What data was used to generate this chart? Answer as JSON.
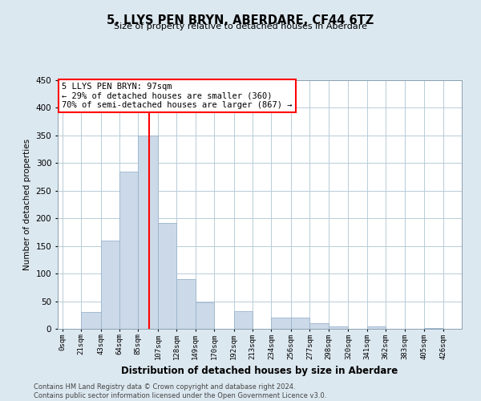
{
  "title": "5, LLYS PEN BRYN, ABERDARE, CF44 6TZ",
  "subtitle": "Size of property relative to detached houses in Aberdare",
  "xlabel": "Distribution of detached houses by size in Aberdare",
  "ylabel": "Number of detached properties",
  "bar_color": "#ccd9e8",
  "bar_edge_color": "#9ab4cc",
  "bar_lefts": [
    0,
    21,
    43,
    64,
    85,
    107,
    128,
    149,
    170,
    192,
    213,
    234,
    256,
    277,
    298,
    320,
    341,
    362,
    383,
    405
  ],
  "bar_widths": [
    21,
    22,
    21,
    21,
    22,
    21,
    21,
    21,
    22,
    21,
    21,
    22,
    21,
    21,
    22,
    21,
    21,
    21,
    22,
    21
  ],
  "bar_heights": [
    0,
    30,
    160,
    285,
    350,
    192,
    90,
    48,
    0,
    32,
    0,
    20,
    20,
    10,
    5,
    0,
    5,
    0,
    0,
    2
  ],
  "x_tick_positions": [
    0,
    21,
    43,
    64,
    85,
    107,
    128,
    149,
    170,
    192,
    213,
    234,
    256,
    277,
    298,
    320,
    341,
    362,
    383,
    405,
    426
  ],
  "x_tick_labels": [
    "0sqm",
    "21sqm",
    "43sqm",
    "64sqm",
    "85sqm",
    "107sqm",
    "128sqm",
    "149sqm",
    "170sqm",
    "192sqm",
    "213sqm",
    "234sqm",
    "256sqm",
    "277sqm",
    "298sqm",
    "320sqm",
    "341sqm",
    "362sqm",
    "383sqm",
    "405sqm",
    "426sqm"
  ],
  "ylim": [
    0,
    450
  ],
  "xlim": [
    -5,
    447
  ],
  "yticks": [
    0,
    50,
    100,
    150,
    200,
    250,
    300,
    350,
    400,
    450
  ],
  "property_line_x": 97,
  "ann_title": "5 LLYS PEN BRYN: 97sqm",
  "ann_line1": "← 29% of detached houses are smaller (360)",
  "ann_line2": "70% of semi-detached houses are larger (867) →",
  "footer_line1": "Contains HM Land Registry data © Crown copyright and database right 2024.",
  "footer_line2": "Contains public sector information licensed under the Open Government Licence v3.0.",
  "fig_bg": "#dce8f0",
  "plot_bg": "#ffffff",
  "grid_color": "#b8ccd8"
}
